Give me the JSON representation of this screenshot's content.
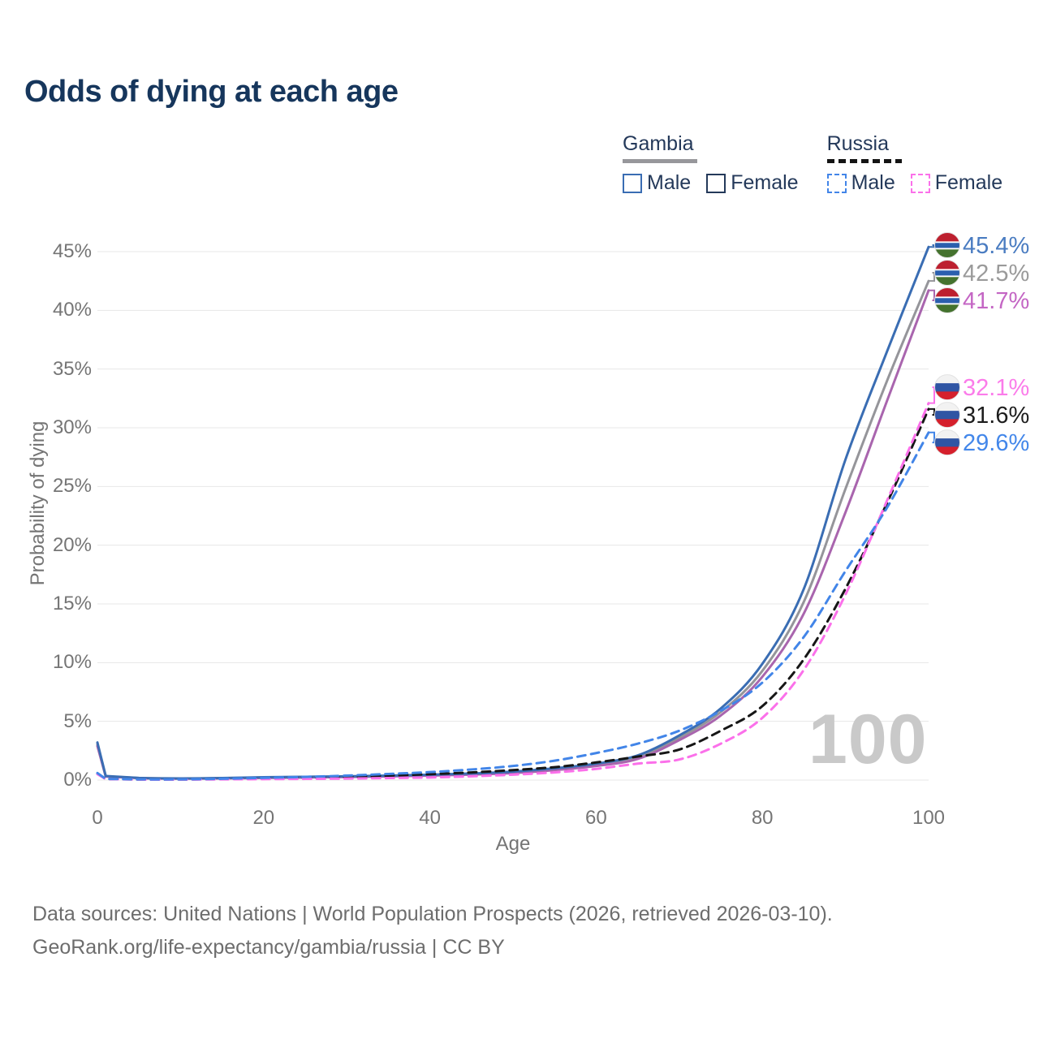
{
  "title": "Odds of dying at each age",
  "watermark": "100",
  "footer": {
    "line1": "Data sources: United Nations | World Population Prospects (2026, retrieved 2026-03-10).",
    "line2": "GeoRank.org/life-expectancy/gambia/russia | CC BY"
  },
  "legend": {
    "groups": [
      {
        "name": "Gambia",
        "line_style": "solid",
        "line_color": "#97979b",
        "items": [
          {
            "label": "Male",
            "color": "#3a6db3",
            "dashed": false
          },
          {
            "label": "Female",
            "color": "#b express66ab8",
            "dashed": false
          }
        ]
      },
      {
        "name": "Russia",
        "line_style": "dashed",
        "line_color": "#141414",
        "items": [
          {
            "label": "Male",
            "color": "#4285e8",
            "dashed": true
          },
          {
            "label": "Female",
            "color": "#fb70ea",
            "dashed": true
          }
        ]
      }
    ]
  },
  "flags": {
    "gambia": {
      "stripes": [
        {
          "color": "#bd202f",
          "h": 0.35
        },
        {
          "color": "#ffffff",
          "h": 0.06
        },
        {
          "color": "#2b5fae",
          "h": 0.2
        },
        {
          "color": "#ffffff",
          "h": 0.06
        },
        {
          "color": "#44722e",
          "h": 0.33
        }
      ]
    },
    "russia": {
      "stripes": [
        {
          "color": "#f2f2f2",
          "h": 0.34
        },
        {
          "color": "#2f55a4",
          "h": 0.33
        },
        {
          "color": "#d5202c",
          "h": 0.33
        }
      ]
    }
  },
  "chart_data": {
    "type": "line",
    "title": "Odds of dying at each age",
    "x_label": "Age",
    "y_label": "Probability of dying",
    "xlim": [
      0,
      100
    ],
    "ylim": [
      0,
      45
    ],
    "x_ticks": [
      0,
      20,
      40,
      60,
      80,
      100
    ],
    "y_ticks": [
      0,
      5,
      10,
      15,
      20,
      25,
      30,
      35,
      40,
      45
    ],
    "y_tick_suffix": "%",
    "grid": "horizontal",
    "legend_position": "top-right",
    "x": [
      0,
      1,
      5,
      10,
      15,
      20,
      25,
      30,
      35,
      40,
      45,
      50,
      55,
      60,
      65,
      70,
      75,
      80,
      85,
      90,
      95,
      100
    ],
    "series": [
      {
        "id": "gambia-both",
        "name": "Gambia — Both sexes",
        "country": "Gambia",
        "sex": "Both sexes",
        "color": "#95959a",
        "label_color": "#9a9a9a",
        "dashed": false,
        "flag": "gambia",
        "end_label": "42.5%",
        "end_value": 42.5,
        "values": [
          3.05,
          0.32,
          0.17,
          0.13,
          0.16,
          0.21,
          0.25,
          0.29,
          0.34,
          0.42,
          0.51,
          0.66,
          0.92,
          1.28,
          1.9,
          3.6,
          5.8,
          9.3,
          15.2,
          24.8,
          34.0,
          42.5
        ]
      },
      {
        "id": "gambia-female",
        "name": "Gambia — Female",
        "country": "Gambia",
        "sex": "Female",
        "color": "#a965ae",
        "label_color": "#c466c4",
        "dashed": false,
        "flag": "gambia",
        "end_label": "41.7%",
        "end_value": 41.7,
        "values": [
          2.9,
          0.3,
          0.16,
          0.12,
          0.14,
          0.18,
          0.22,
          0.26,
          0.31,
          0.38,
          0.47,
          0.6,
          0.85,
          1.2,
          1.8,
          3.4,
          5.5,
          8.8,
          14.2,
          22.8,
          32.3,
          41.7
        ]
      },
      {
        "id": "gambia-male",
        "name": "Gambia — Male",
        "country": "Gambia",
        "sex": "Male",
        "color": "#3a6db3",
        "label_color": "#4a7cc1",
        "dashed": false,
        "flag": "gambia",
        "end_label": "45.4%",
        "end_value": 45.4,
        "values": [
          3.2,
          0.35,
          0.18,
          0.14,
          0.17,
          0.24,
          0.28,
          0.32,
          0.38,
          0.46,
          0.56,
          0.72,
          1.0,
          1.4,
          2.1,
          3.8,
          6.1,
          9.9,
          16.3,
          27.3,
          36.5,
          45.4
        ]
      },
      {
        "id": "russia-both",
        "name": "Russia — Both sexes",
        "country": "Russia",
        "sex": "Both sexes",
        "color": "#161616",
        "label_color": "#1d1d1d",
        "dashed": true,
        "flag": "russia",
        "end_label": "31.6%",
        "end_value": 31.6,
        "values": [
          0.55,
          0.09,
          0.05,
          0.05,
          0.09,
          0.15,
          0.21,
          0.28,
          0.38,
          0.5,
          0.65,
          0.85,
          1.1,
          1.5,
          2.0,
          2.6,
          4.2,
          6.3,
          10.3,
          16.3,
          23.6,
          31.6
        ]
      },
      {
        "id": "russia-female",
        "name": "Russia — Female",
        "country": "Russia",
        "sex": "Female",
        "color": "#fb70ea",
        "label_color": "#fb7cea",
        "dashed": true,
        "flag": "russia",
        "end_label": "32.1%",
        "end_value": 32.1,
        "values": [
          0.5,
          0.08,
          0.04,
          0.04,
          0.06,
          0.08,
          0.1,
          0.13,
          0.17,
          0.22,
          0.32,
          0.46,
          0.65,
          0.95,
          1.4,
          1.75,
          3.1,
          5.3,
          9.4,
          15.8,
          23.8,
          32.1
        ]
      },
      {
        "id": "russia-male",
        "name": "Russia — Male",
        "country": "Russia",
        "sex": "Male",
        "color": "#4285e8",
        "label_color": "#4387ea",
        "dashed": true,
        "flag": "russia",
        "end_label": "29.6%",
        "end_value": 29.6,
        "values": [
          0.6,
          0.1,
          0.06,
          0.06,
          0.11,
          0.19,
          0.27,
          0.38,
          0.52,
          0.68,
          0.9,
          1.2,
          1.65,
          2.3,
          3.1,
          4.2,
          5.9,
          8.3,
          12.2,
          17.8,
          23.2,
          29.6
        ]
      }
    ]
  }
}
